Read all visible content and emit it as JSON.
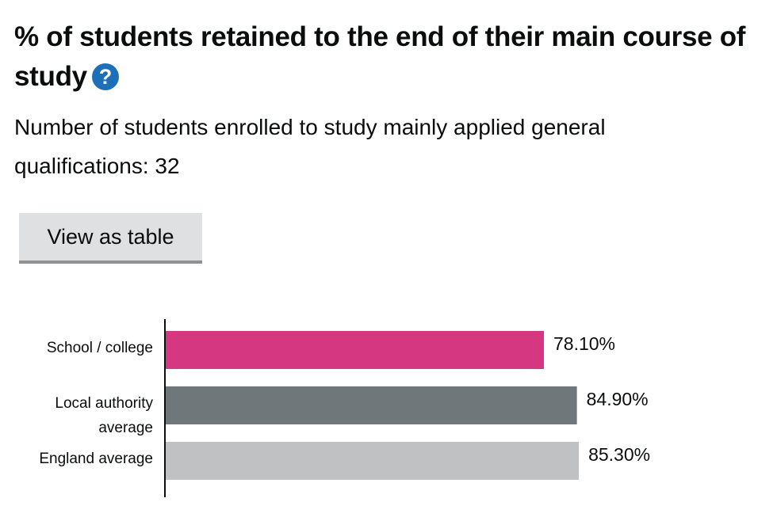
{
  "heading": {
    "title": "% of students retained to the end of their main course of study",
    "help_icon": "question-circle-icon",
    "help_glyph": "?"
  },
  "subtitle": "Number of students enrolled to study mainly applied general qualifications: 32",
  "view_table_button": "View as table",
  "colors": {
    "help": "#1d70b8",
    "school": "#d53880",
    "local": "#6f777b",
    "england": "#bfc1c3"
  },
  "chart_data": {
    "type": "bar",
    "orientation": "horizontal",
    "categories": [
      {
        "lines": [
          "School / college"
        ]
      },
      {
        "lines": [
          "Local authority",
          "average"
        ]
      },
      {
        "lines": [
          "England average"
        ]
      }
    ],
    "values": [
      78.1,
      84.9,
      85.3
    ],
    "value_labels": [
      "78.10%",
      "84.90%",
      "85.30%"
    ],
    "bar_colors": [
      "#d53880",
      "#6f777b",
      "#bfc1c3"
    ],
    "xlim": [
      0,
      100
    ],
    "title": "% of students retained to the end of their main course of study",
    "grid": false,
    "legend": "none"
  }
}
